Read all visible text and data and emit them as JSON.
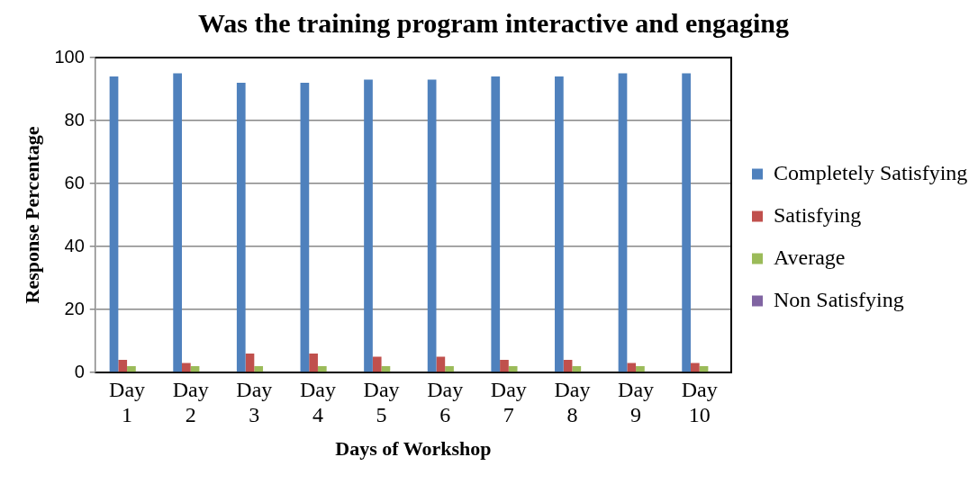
{
  "chart_data": {
    "type": "bar",
    "title": "Was the training program interactive and engaging",
    "xlabel": "Days of Workshop",
    "ylabel": "Response Percentage",
    "categories": [
      "Day 1",
      "Day 2",
      "Day 3",
      "Day 4",
      "Day 5",
      "Day 6",
      "Day 7",
      "Day 8",
      "Day 9",
      "Day 10"
    ],
    "series": [
      {
        "name": "Completely Satisfying",
        "color": "#4f81bd",
        "values": [
          94,
          95,
          92,
          92,
          93,
          93,
          94,
          94,
          95,
          95
        ]
      },
      {
        "name": "Satisfying",
        "color": "#c0504d",
        "values": [
          4,
          3,
          6,
          6,
          5,
          5,
          4,
          4,
          3,
          3
        ]
      },
      {
        "name": "Average",
        "color": "#9bbb59",
        "values": [
          2,
          2,
          2,
          2,
          2,
          2,
          2,
          2,
          2,
          2
        ]
      },
      {
        "name": "Non Satisfying",
        "color": "#8064a2",
        "values": [
          0,
          0,
          0,
          0,
          0,
          0,
          0,
          0,
          0,
          0
        ]
      }
    ],
    "ylim": [
      0,
      100
    ],
    "yticks": [
      0,
      20,
      40,
      60,
      80,
      100
    ],
    "grid": "y",
    "legend": "right"
  }
}
